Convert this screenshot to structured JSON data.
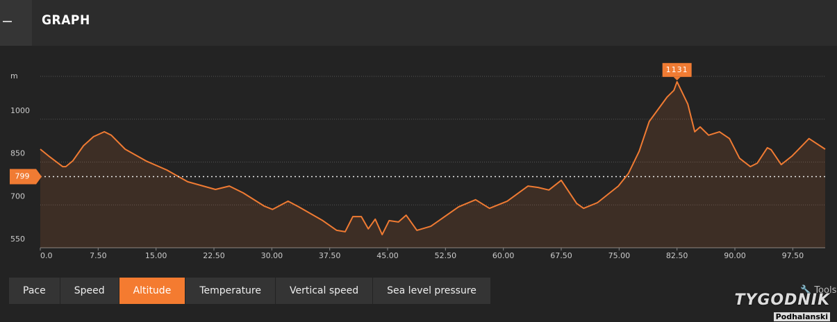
{
  "header": {
    "title": "GRAPH"
  },
  "chart_data": {
    "type": "area",
    "y_label": "m",
    "color": "#f07b33",
    "x": [
      0,
      1.1,
      2.9,
      3.3,
      4.2,
      5.6,
      6.9,
      8.3,
      9.2,
      11.0,
      13.7,
      16.4,
      19.1,
      22.7,
      24.5,
      26.3,
      29.0,
      30.1,
      32.1,
      33.5,
      36.6,
      38.4,
      39.5,
      40.5,
      41.6,
      42.5,
      43.4,
      44.3,
      45.2,
      46.4,
      47.4,
      48.8,
      50.6,
      54.2,
      56.4,
      58.2,
      60.5,
      63.2,
      64.5,
      65.9,
      67.5,
      69.5,
      70.4,
      72.2,
      74.9,
      76.2,
      77.6,
      78.9,
      81.2,
      82.1,
      82.5,
      83.9,
      84.8,
      85.5,
      86.6,
      88.0,
      89.3,
      90.6,
      92.0,
      92.9,
      94.2,
      94.7,
      96.0,
      97.4,
      99.6,
      101.7
    ],
    "values": [
      895,
      871,
      834,
      834,
      854,
      907,
      939,
      956,
      944,
      895,
      854,
      822,
      781,
      754,
      766,
      742,
      696,
      684,
      713,
      693,
      645,
      611,
      606,
      659,
      659,
      616,
      650,
      596,
      645,
      640,
      664,
      611,
      625,
      693,
      718,
      688,
      713,
      766,
      761,
      752,
      786,
      705,
      688,
      708,
      766,
      810,
      888,
      992,
      1077,
      1101,
      1131,
      1053,
      956,
      973,
      944,
      956,
      932,
      863,
      834,
      846,
      900,
      893,
      841,
      871,
      932,
      895
    ],
    "xlim": [
      0,
      101.7
    ],
    "ylim": [
      550,
      1150
    ],
    "xticks": [
      {
        "value": 0,
        "label": "0.0"
      },
      {
        "value": 7.5,
        "label": "7.50"
      },
      {
        "value": 15,
        "label": "15.00"
      },
      {
        "value": 22.5,
        "label": "22.50"
      },
      {
        "value": 30,
        "label": "30.00"
      },
      {
        "value": 37.5,
        "label": "37.50"
      },
      {
        "value": 45,
        "label": "45.00"
      },
      {
        "value": 52.5,
        "label": "52.50"
      },
      {
        "value": 60,
        "label": "60.00"
      },
      {
        "value": 67.5,
        "label": "67.50"
      },
      {
        "value": 75,
        "label": "75.00"
      },
      {
        "value": 82.5,
        "label": "82.50"
      },
      {
        "value": 90,
        "label": "90.00"
      },
      {
        "value": 97.5,
        "label": "97.50"
      }
    ],
    "yticks": [
      550,
      700,
      850,
      1000
    ],
    "grid": true,
    "reference_line": 799,
    "max_label": {
      "index": 50,
      "text": "1131"
    }
  },
  "tabs": {
    "items": [
      "Pace",
      "Speed",
      "Altitude",
      "Temperature",
      "Vertical speed",
      "Sea level pressure"
    ],
    "active": 2
  },
  "tools": "Tools",
  "watermark": [
    "TYGODNIK",
    "Podhalanski"
  ]
}
